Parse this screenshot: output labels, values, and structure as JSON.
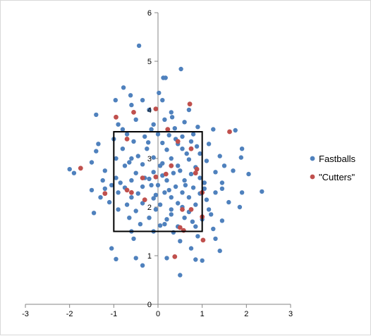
{
  "chart_data": {
    "type": "scatter",
    "title": "",
    "xlabel": "",
    "ylabel": "",
    "xlim": [
      -3,
      3
    ],
    "ylim": [
      0,
      6
    ],
    "x_ticks": [
      -3,
      -2,
      -1,
      0,
      1,
      2,
      3
    ],
    "y_ticks": [
      0,
      1,
      2,
      3,
      4,
      5,
      6
    ],
    "grid": false,
    "legend_position": "right",
    "strike_zone": {
      "x": [
        -1,
        1
      ],
      "y": [
        1.5,
        3.55
      ]
    },
    "series": [
      {
        "name": "Fastballs",
        "color": "#4f81bd",
        "points": [
          [
            -0.43,
            5.32
          ],
          [
            0.12,
            4.66
          ],
          [
            0.17,
            4.66
          ],
          [
            0.52,
            4.84
          ],
          [
            -0.78,
            4.46
          ],
          [
            -0.96,
            4.2
          ],
          [
            -0.35,
            4.2
          ],
          [
            0.1,
            4.2
          ],
          [
            -0.6,
            4.1
          ],
          [
            0.7,
            4.0
          ],
          [
            -1.4,
            3.9
          ],
          [
            -0.2,
            4.0
          ],
          [
            0.3,
            3.95
          ],
          [
            -0.5,
            3.8
          ],
          [
            0.15,
            3.8
          ],
          [
            0.6,
            3.75
          ],
          [
            -0.9,
            3.7
          ],
          [
            -0.1,
            3.7
          ],
          [
            0.9,
            3.65
          ],
          [
            1.25,
            3.6
          ],
          [
            1.75,
            3.58
          ],
          [
            -0.7,
            3.5
          ],
          [
            -0.3,
            3.45
          ],
          [
            0.0,
            3.5
          ],
          [
            0.25,
            3.48
          ],
          [
            0.55,
            3.45
          ],
          [
            0.8,
            3.5
          ],
          [
            -1.35,
            3.3
          ],
          [
            -0.55,
            3.35
          ],
          [
            0.1,
            3.32
          ],
          [
            0.45,
            3.3
          ],
          [
            0.75,
            3.35
          ],
          [
            -1.4,
            3.15
          ],
          [
            -0.8,
            3.2
          ],
          [
            -0.25,
            3.2
          ],
          [
            0.2,
            3.18
          ],
          [
            0.55,
            3.2
          ],
          [
            0.95,
            3.1
          ],
          [
            1.4,
            3.05
          ],
          [
            1.9,
            3.2
          ],
          [
            -0.95,
            3.0
          ],
          [
            -0.6,
            3.0
          ],
          [
            -0.1,
            3.02
          ],
          [
            0.3,
            3.0
          ],
          [
            0.7,
            2.98
          ],
          [
            1.1,
            2.95
          ],
          [
            -1.5,
            2.92
          ],
          [
            -0.75,
            2.85
          ],
          [
            -0.35,
            2.88
          ],
          [
            0.05,
            2.85
          ],
          [
            0.45,
            2.85
          ],
          [
            0.85,
            2.82
          ],
          [
            1.5,
            2.85
          ],
          [
            1.88,
            3.02
          ],
          [
            -2.0,
            2.78
          ],
          [
            -1.9,
            2.7
          ],
          [
            -1.2,
            2.75
          ],
          [
            -0.5,
            2.7
          ],
          [
            -0.1,
            2.72
          ],
          [
            0.35,
            2.7
          ],
          [
            0.75,
            2.68
          ],
          [
            1.3,
            2.72
          ],
          [
            -0.95,
            2.6
          ],
          [
            -0.6,
            2.55
          ],
          [
            -0.2,
            2.58
          ],
          [
            0.2,
            2.55
          ],
          [
            0.6,
            2.55
          ],
          [
            1.05,
            2.5
          ],
          [
            1.45,
            2.5
          ],
          [
            2.05,
            2.68
          ],
          [
            -1.05,
            2.45
          ],
          [
            -0.75,
            2.4
          ],
          [
            -0.35,
            2.42
          ],
          [
            0.0,
            2.45
          ],
          [
            0.4,
            2.42
          ],
          [
            0.8,
            2.4
          ],
          [
            1.45,
            2.38
          ],
          [
            -1.5,
            2.35
          ],
          [
            -0.9,
            2.3
          ],
          [
            -0.45,
            2.28
          ],
          [
            0.15,
            2.3
          ],
          [
            0.55,
            2.3
          ],
          [
            0.95,
            2.28
          ],
          [
            1.3,
            2.3
          ],
          [
            1.9,
            2.3
          ],
          [
            2.35,
            2.32
          ],
          [
            -1.3,
            2.2
          ],
          [
            -0.6,
            2.2
          ],
          [
            -0.1,
            2.18
          ],
          [
            0.3,
            2.2
          ],
          [
            0.7,
            2.2
          ],
          [
            1.1,
            2.15
          ],
          [
            -1.1,
            2.1
          ],
          [
            -0.35,
            2.08
          ],
          [
            0.05,
            2.05
          ],
          [
            0.45,
            2.08
          ],
          [
            0.85,
            2.05
          ],
          [
            1.6,
            2.1
          ],
          [
            -1.45,
            1.88
          ],
          [
            -0.9,
            1.95
          ],
          [
            -0.5,
            1.92
          ],
          [
            -0.05,
            1.95
          ],
          [
            0.3,
            1.95
          ],
          [
            0.7,
            1.9
          ],
          [
            1.15,
            1.95
          ],
          [
            1.85,
            2.0
          ],
          [
            -0.65,
            1.78
          ],
          [
            -0.2,
            1.78
          ],
          [
            0.2,
            1.75
          ],
          [
            0.6,
            1.78
          ],
          [
            1.0,
            1.75
          ],
          [
            1.45,
            1.72
          ],
          [
            -0.4,
            1.65
          ],
          [
            0.05,
            1.62
          ],
          [
            0.45,
            1.6
          ],
          [
            0.85,
            1.6
          ],
          [
            1.25,
            1.55
          ],
          [
            -0.1,
            1.5
          ],
          [
            0.35,
            1.48
          ],
          [
            -0.6,
            1.5
          ],
          [
            0.9,
            1.4
          ],
          [
            1.3,
            1.35
          ],
          [
            0.5,
            1.3
          ],
          [
            -1.05,
            1.15
          ],
          [
            0.75,
            1.15
          ],
          [
            1.4,
            1.1
          ],
          [
            -0.95,
            0.93
          ],
          [
            -0.5,
            0.95
          ],
          [
            0.2,
            0.95
          ],
          [
            0.85,
            0.92
          ],
          [
            1.0,
            0.9
          ],
          [
            -0.35,
            0.8
          ],
          [
            0.5,
            0.6
          ],
          [
            -0.8,
            3.6
          ],
          [
            -0.15,
            3.6
          ],
          [
            0.38,
            3.62
          ],
          [
            1.15,
            3.3
          ],
          [
            -1.2,
            2.38
          ],
          [
            1.7,
            2.75
          ],
          [
            -0.3,
            2.6
          ],
          [
            0.1,
            2.65
          ],
          [
            0.55,
            2.0
          ],
          [
            -0.7,
            2.05
          ],
          [
            0.25,
            2.35
          ],
          [
            0.95,
            2.6
          ],
          [
            -0.45,
            3.05
          ],
          [
            0.65,
            3.1
          ],
          [
            -1.0,
            3.4
          ],
          [
            1.05,
            2.38
          ],
          [
            0.15,
            1.65
          ],
          [
            -0.85,
            2.5
          ],
          [
            0.4,
            3.4
          ],
          [
            -0.05,
            2.25
          ],
          [
            0.3,
            1.85
          ],
          [
            0.62,
            2.45
          ],
          [
            -0.22,
            3.33
          ],
          [
            0.88,
            3.25
          ],
          [
            -1.25,
            2.55
          ],
          [
            1.2,
            1.85
          ],
          [
            -0.55,
            1.35
          ],
          [
            0.1,
            2.9
          ],
          [
            0.5,
            2.75
          ],
          [
            -0.65,
            2.92
          ],
          [
            0.78,
            1.7
          ],
          [
            -0.15,
            2.45
          ],
          [
            0.32,
            3.85
          ],
          [
            0.02,
            4.35
          ],
          [
            -0.62,
            4.3
          ]
        ]
      },
      {
        "name": "\"Cutters\"",
        "color": "#c0504d",
        "points": [
          [
            -0.95,
            3.85
          ],
          [
            -0.55,
            3.95
          ],
          [
            -0.05,
            4.02
          ],
          [
            0.72,
            4.12
          ],
          [
            0.22,
            3.6
          ],
          [
            1.62,
            3.55
          ],
          [
            -0.7,
            3.4
          ],
          [
            0.45,
            3.35
          ],
          [
            0.75,
            3.2
          ],
          [
            -1.75,
            2.8
          ],
          [
            -0.7,
            2.35
          ],
          [
            -0.05,
            2.62
          ],
          [
            0.3,
            2.85
          ],
          [
            0.85,
            2.7
          ],
          [
            1.0,
            2.3
          ],
          [
            -1.2,
            2.28
          ],
          [
            -0.3,
            2.15
          ],
          [
            0.55,
            1.95
          ],
          [
            1.0,
            1.8
          ],
          [
            0.75,
            1.95
          ],
          [
            0.5,
            1.58
          ],
          [
            0.58,
            1.52
          ],
          [
            1.02,
            1.32
          ],
          [
            0.38,
            0.98
          ],
          [
            0.18,
            2.68
          ],
          [
            0.88,
            2.78
          ],
          [
            -0.35,
            2.6
          ],
          [
            -0.6,
            2.3
          ]
        ]
      }
    ]
  },
  "legend": {
    "items": [
      {
        "label": "Fastballs",
        "color": "#4f81bd"
      },
      {
        "label": "\"Cutters\"",
        "color": "#c0504d"
      }
    ]
  }
}
